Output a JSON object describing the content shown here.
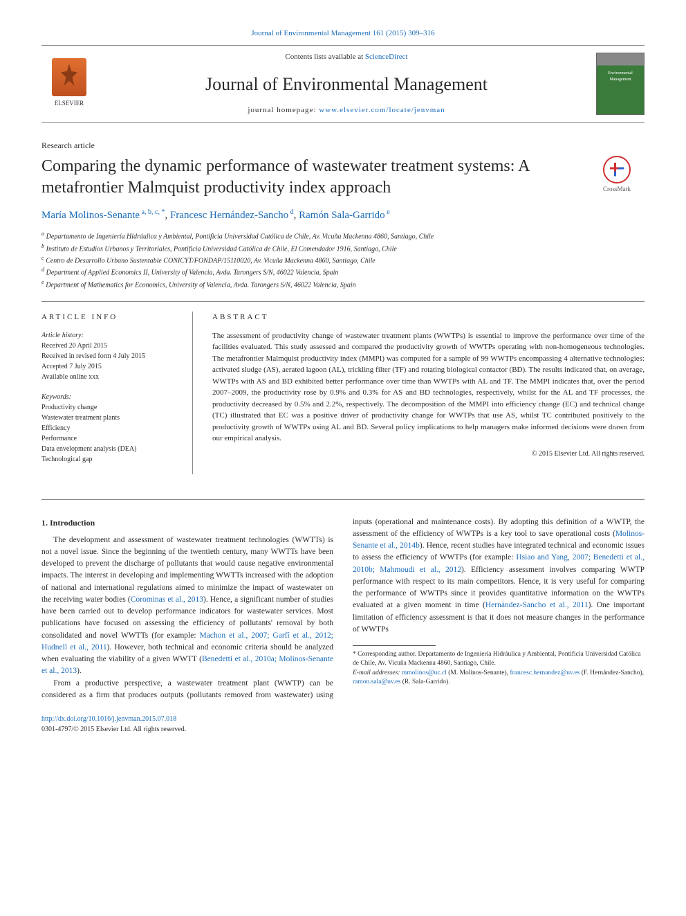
{
  "topLink": {
    "prefix": "",
    "journal": "Journal of Environmental Management 161 (2015) 309–316"
  },
  "header": {
    "contentsPrefix": "Contents lists available at ",
    "contentsLink": "ScienceDirect",
    "journalName": "Journal of Environmental Management",
    "homepagePrefix": "journal homepage: ",
    "homepageLink": "www.elsevier.com/locate/jenvman",
    "elsevierLabel": "ELSEVIER",
    "coverText": "Environmental Management"
  },
  "articleType": "Research article",
  "title": "Comparing the dynamic performance of wastewater treatment systems: A metafrontier Malmquist productivity index approach",
  "crossmark": "CrossMark",
  "authors": {
    "a1": {
      "name": "María Molinos-Senante",
      "sup": "a, b, c, *"
    },
    "a2": {
      "name": "Francesc Hernández-Sancho",
      "sup": "d"
    },
    "a3": {
      "name": "Ramón Sala-Garrido",
      "sup": "e"
    }
  },
  "affiliations": {
    "a": "Departamento de Ingeniería Hidráulica y Ambiental, Pontificia Universidad Católica de Chile, Av. Vicuña Mackenna 4860, Santiago, Chile",
    "b": "Instituto de Estudios Urbanos y Territoriales, Pontificia Universidad Católica de Chile, El Comendador 1916, Santiago, Chile",
    "c": "Centro de Desarrollo Urbano Sustentable CONICYT/FONDAP/15110020, Av. Vicuña Mackenna 4860, Santiago, Chile",
    "d": "Department of Applied Economics II, University of Valencia, Avda. Tarongers S/N, 46022 Valencia, Spain",
    "e": "Department of Mathematics for Economics, University of Valencia, Avda. Tarongers S/N, 46022 Valencia, Spain"
  },
  "info": {
    "sectionHead": "ARTICLE INFO",
    "historyLabel": "Article history:",
    "received": "Received 20 April 2015",
    "revised": "Received in revised form 4 July 2015",
    "accepted": "Accepted 7 July 2015",
    "online": "Available online xxx",
    "keywordsLabel": "Keywords:",
    "kw1": "Productivity change",
    "kw2": "Wastewater treatment plants",
    "kw3": "Efficiency",
    "kw4": "Performance",
    "kw5": "Data envelopment analysis (DEA)",
    "kw6": "Technological gap"
  },
  "abstract": {
    "sectionHead": "ABSTRACT",
    "text": "The assessment of productivity change of wastewater treatment plants (WWTPs) is essential to improve the performance over time of the facilities evaluated. This study assessed and compared the productivity growth of WWTPs operating with non-homogeneous technologies. The metafrontier Malmquist productivity index (MMPI) was computed for a sample of 99 WWTPs encompassing 4 alternative technologies: activated sludge (AS), aerated lagoon (AL), trickling filter (TF) and rotating biological contactor (BD). The results indicated that, on average, WWTPs with AS and BD exhibited better performance over time than WWTPs with AL and TF. The MMPI indicates that, over the period 2007–2009, the productivity rose by 0.9% and 0.3% for AS and BD technologies, respectively, whilst for the AL and TF processes, the productivity decreased by 0.5% and 2.2%, respectively. The decomposition of the MMPI into efficiency change (EC) and technical change (TC) illustrated that EC was a positive driver of productivity change for WWTPs that use AS, whilst TC contributed positively to the productivity growth of WWTPs using AL and BD. Several policy implications to help managers make informed decisions were drawn from our empirical analysis.",
    "copyright": "© 2015 Elsevier Ltd. All rights reserved."
  },
  "body": {
    "head": "1. Introduction",
    "p1a": "The development and assessment of wastewater treatment technologies (WWTTs) is not a novel issue. Since the beginning of the twentieth century, many WWTTs have been developed to prevent the discharge of pollutants that would cause negative environmental impacts. The interest in developing and implementing WWTTs increased with the adoption of national and international regulations aimed to minimize the impact of wastewater on the receiving water bodies (",
    "p1link1": "Corominas et al., 2013",
    "p1b": "). Hence, a significant number of studies have been carried out to develop performance indicators for wastewater services. Most publications have focused on assessing the efficiency of pollutants' removal by both consolidated and novel WWTTs (for example: ",
    "p1link2": "Machon et al., 2007; Garfí et al., 2012; Hudnell et al., 2011",
    "p1c": "). However, both technical and economic criteria should be analyzed when evaluating the viability of a given WWTT (",
    "p1link3": "Benedetti et al., 2010a; Molinos-Senante et al., 2013",
    "p1d": ").",
    "p2a": "From a productive perspective, a wastewater treatment plant (WWTP) can be considered as a firm that produces outputs (pollutants removed from wastewater) using inputs (operational and maintenance costs). By adopting this definition of a WWTP, the assessment of the efficiency of WWTPs is a key tool to save operational costs (",
    "p2link1": "Molinos-Senante et al., 2014b",
    "p2b": "). Hence, recent studies have integrated technical and economic issues to assess the efficiency of WWTPs (for example: ",
    "p2link2": "Hsiao and Yang, 2007; Benedetti et al., 2010b; Mahmoudi et al., 2012",
    "p2c": "). Efficiency assessment involves comparing WWTP performance with respect to its main competitors. Hence, it is very useful for comparing the performance of WWTPs since it provides quantitative information on the WWTPs evaluated at a given moment in time (",
    "p2link3": "Hernández-Sancho et al., 2011",
    "p2d": "). One important limitation of efficiency assessment is that it does not measure changes in the performance of WWTPs"
  },
  "footnote": {
    "corr": "* Corresponding author. Departamento de Ingeniería Hidráulica y Ambiental, Pontificia Universidad Católica de Chile, Av. Vicuña Mackenna 4860, Santiago, Chile.",
    "emailLabel": "E-mail addresses: ",
    "e1": "mmolinos@uc.cl",
    "e1who": " (M. Molinos-Senante), ",
    "e2": "francesc.hernandez@uv.es",
    "e2who": " (F. Hernández-Sancho), ",
    "e3": "ramon.sala@uv.es",
    "e3who": " (R. Sala-Garrido)."
  },
  "doi": {
    "link": "http://dx.doi.org/10.1016/j.jenvman.2015.07.018",
    "issn": "0301-4797/© 2015 Elsevier Ltd. All rights reserved."
  },
  "colors": {
    "link": "#1a6bb8",
    "rule": "#888888",
    "text": "#2a2a2a"
  }
}
